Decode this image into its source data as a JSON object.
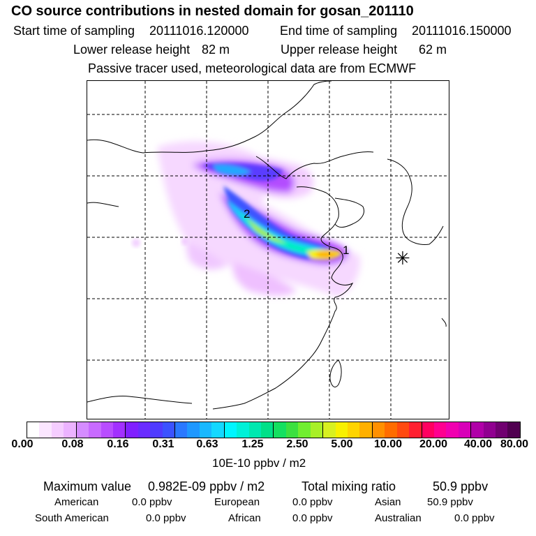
{
  "title": "CO  source contributions in nested domain for gosan_201110",
  "sampling": {
    "start_label": "Start time of sampling",
    "start_value": "20111016.120000",
    "end_label": "End time of sampling",
    "end_value": "20111016.150000"
  },
  "release": {
    "lower_label": "Lower release height",
    "lower_value": "82 m",
    "upper_label": "Upper release height",
    "upper_value": "62 m"
  },
  "note": "Passive tracer used, meteorological data are from ECMWF",
  "map": {
    "markers": [
      {
        "label": "1"
      },
      {
        "label": "2"
      }
    ],
    "receptor_symbol": "✳"
  },
  "colorbar": {
    "ticks": [
      "0.00",
      "0.08",
      "0.16",
      "0.31",
      "0.63",
      "1.25",
      "2.50",
      "5.00",
      "10.00",
      "20.00",
      "40.00",
      "80.00"
    ],
    "unit": "10E-10 ppbv / m2",
    "colors": [
      "#ffffff",
      "#fbe6ff",
      "#f5cdff",
      "#ecb3ff",
      "#d58cff",
      "#c86bff",
      "#b84dff",
      "#a230ff",
      "#8020ff",
      "#6a2cff",
      "#4f3bff",
      "#3b52ff",
      "#2a78ff",
      "#1f98ff",
      "#18b8ff",
      "#14d8ff",
      "#00f5ff",
      "#00f0d8",
      "#00e8b0",
      "#00e088",
      "#14e060",
      "#3ce040",
      "#70ee30",
      "#a8f028",
      "#d8f020",
      "#f8f000",
      "#ffd400",
      "#ffb000",
      "#ff9000",
      "#ff6c00",
      "#ff4a10",
      "#ff2030",
      "#ff0060",
      "#ff0090",
      "#f000b0",
      "#d800b8",
      "#b000a8",
      "#900090",
      "#700070",
      "#500050"
    ]
  },
  "summary": {
    "max_label": "Maximum value",
    "max_value": "0.982E-09 ppbv / m2",
    "total_label": "Total mixing ratio",
    "total_value": "50.9 ppbv",
    "rows": [
      [
        {
          "label": "American",
          "value": "0.0 ppbv"
        },
        {
          "label": "European",
          "value": "0.0 ppbv"
        },
        {
          "label": "Asian",
          "value": "50.9 ppbv"
        }
      ],
      [
        {
          "label": "South American",
          "value": "0.0 ppbv"
        },
        {
          "label": "African",
          "value": "0.0 ppbv"
        },
        {
          "label": "Australian",
          "value": "0.0 ppbv"
        }
      ]
    ]
  }
}
